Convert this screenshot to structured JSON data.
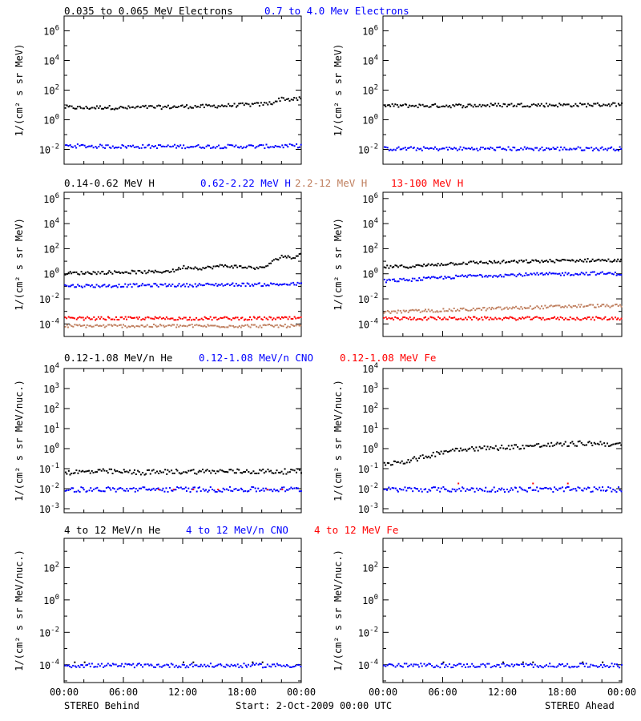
{
  "colors": {
    "black": "#000000",
    "blue": "#0000ff",
    "tan": "#c08060",
    "red": "#ff0000"
  },
  "chart_data": [
    {
      "type": "scatter",
      "panel": "row1-left",
      "ylabel": "1/(cm² s sr MeV)",
      "ylim_log10": [
        -3,
        7
      ],
      "log_y": true,
      "ytick_exponents": [
        -2,
        0,
        2,
        4,
        6
      ],
      "xlim_hours": [
        0,
        24
      ],
      "series": [
        {
          "name": "0.035 to 0.065 MeV Electrons",
          "color": "black",
          "x_hours": [
            0,
            2,
            4,
            6,
            8,
            10,
            12,
            14,
            16,
            18,
            20,
            21,
            22,
            23,
            24
          ],
          "log10_y": [
            0.9,
            0.85,
            0.9,
            0.85,
            0.9,
            0.9,
            0.95,
            0.95,
            1.0,
            1.05,
            1.1,
            1.2,
            1.5,
            1.4,
            1.5
          ]
        },
        {
          "name": "0.7 to 4.0 Mev Electrons",
          "color": "blue",
          "x_hours": [
            0,
            4,
            8,
            12,
            16,
            20,
            24
          ],
          "log10_y": [
            -1.7,
            -1.75,
            -1.75,
            -1.75,
            -1.75,
            -1.75,
            -1.7
          ]
        }
      ]
    },
    {
      "type": "scatter",
      "panel": "row1-right",
      "ylabel": "1/(cm² s sr MeV)",
      "ylim_log10": [
        -3,
        7
      ],
      "log_y": true,
      "ytick_exponents": [
        -2,
        0,
        2,
        4,
        6
      ],
      "xlim_hours": [
        0,
        24
      ],
      "series": [
        {
          "name": "0.035 to 0.065 MeV Electrons",
          "color": "black",
          "x_hours": [
            0,
            4,
            8,
            12,
            16,
            20,
            24
          ],
          "log10_y": [
            1.0,
            1.0,
            1.0,
            1.05,
            1.05,
            1.05,
            1.1
          ]
        },
        {
          "name": "0.7 to 4.0 Mev Electrons",
          "color": "blue",
          "x_hours": [
            0,
            4,
            8,
            12,
            16,
            20,
            24
          ],
          "log10_y": [
            -1.9,
            -1.9,
            -1.9,
            -1.9,
            -1.9,
            -1.9,
            -1.9
          ]
        }
      ]
    },
    {
      "type": "scatter",
      "panel": "row2-left",
      "ylabel": "1/(cm² s sr MeV)",
      "ylim_log10": [
        -5,
        6.5
      ],
      "log_y": true,
      "ytick_exponents": [
        -4,
        -2,
        0,
        2,
        4,
        6
      ],
      "xlim_hours": [
        0,
        24
      ],
      "series": [
        {
          "name": "0.14-0.62 MeV H",
          "color": "black",
          "x_hours": [
            0,
            3,
            6,
            9,
            11,
            12,
            14,
            16,
            18,
            20,
            21,
            22,
            23,
            24
          ],
          "log10_y": [
            0.1,
            0.15,
            0.2,
            0.2,
            0.3,
            0.6,
            0.5,
            0.7,
            0.6,
            0.5,
            1.0,
            1.5,
            1.3,
            1.8
          ]
        },
        {
          "name": "0.62-2.22 MeV H",
          "color": "blue",
          "x_hours": [
            0,
            4,
            8,
            12,
            16,
            20,
            24
          ],
          "log10_y": [
            -0.9,
            -0.9,
            -0.85,
            -0.85,
            -0.8,
            -0.8,
            -0.75
          ]
        },
        {
          "name": "2.2-12 MeV H",
          "color": "tan",
          "x_hours": [
            0,
            4,
            8,
            12,
            16,
            20,
            24
          ],
          "log10_y": [
            -4.1,
            -4.1,
            -4.1,
            -4.1,
            -4.1,
            -4.1,
            -4.1
          ]
        },
        {
          "name": "13-100 MeV H",
          "color": "red",
          "x_hours": [
            0,
            4,
            8,
            12,
            16,
            20,
            24
          ],
          "log10_y": [
            -3.5,
            -3.5,
            -3.5,
            -3.5,
            -3.5,
            -3.5,
            -3.5
          ]
        }
      ]
    },
    {
      "type": "scatter",
      "panel": "row2-right",
      "ylabel": "1/(cm² s sr MeV)",
      "ylim_log10": [
        -5,
        6.5
      ],
      "log_y": true,
      "ytick_exponents": [
        -4,
        -2,
        0,
        2,
        4,
        6
      ],
      "xlim_hours": [
        0,
        24
      ],
      "series": [
        {
          "name": "0.14-0.62 MeV H",
          "color": "black",
          "x_hours": [
            0,
            3,
            6,
            9,
            12,
            15,
            18,
            21,
            24
          ],
          "log10_y": [
            0.6,
            0.65,
            0.85,
            0.95,
            1.0,
            1.05,
            1.1,
            1.15,
            1.1
          ]
        },
        {
          "name": "0.62-2.22 MeV H",
          "color": "blue",
          "x_hours": [
            0,
            3,
            6,
            9,
            12,
            15,
            18,
            21,
            24
          ],
          "log10_y": [
            -0.5,
            -0.4,
            -0.25,
            -0.1,
            -0.05,
            0.0,
            0.05,
            0.1,
            0.05
          ]
        },
        {
          "name": "2.2-12 MeV H",
          "color": "tan",
          "x_hours": [
            0,
            4,
            8,
            12,
            16,
            20,
            24
          ],
          "log10_y": [
            -3.0,
            -2.9,
            -2.8,
            -2.7,
            -2.6,
            -2.5,
            -2.5
          ]
        },
        {
          "name": "13-100 MeV H",
          "color": "red",
          "x_hours": [
            0,
            4,
            8,
            12,
            16,
            20,
            24
          ],
          "log10_y": [
            -3.5,
            -3.5,
            -3.5,
            -3.5,
            -3.5,
            -3.5,
            -3.5
          ]
        }
      ]
    },
    {
      "type": "scatter",
      "panel": "row3-left",
      "ylabel": "1/(cm² s sr MeV/nuc.)",
      "ylim_log10": [
        -3.2,
        4
      ],
      "log_y": true,
      "ytick_exponents": [
        -3,
        -2,
        -1,
        0,
        1,
        2,
        3,
        4
      ],
      "xlim_hours": [
        0,
        24
      ],
      "series": [
        {
          "name": "0.12-1.08 MeV/n He",
          "color": "black",
          "x_hours": [
            0,
            4,
            8,
            12,
            16,
            20,
            24
          ],
          "log10_y": [
            -1.15,
            -1.1,
            -1.15,
            -1.1,
            -1.1,
            -1.1,
            -1.1
          ]
        },
        {
          "name": "0.12-1.08 MeV/n CNO",
          "color": "blue",
          "x_hours": [
            0,
            4,
            8,
            12,
            16,
            20,
            24
          ],
          "log10_y": [
            -2.0,
            -2.0,
            -2.0,
            -2.0,
            -2.0,
            -2.0,
            -2.0
          ]
        },
        {
          "name": "0.12-1.08 MeV Fe",
          "color": "red",
          "x_hours": [
            9.5,
            11,
            13,
            15.5,
            20.5,
            22
          ],
          "log10_y": [
            -2.0,
            -2.0,
            -2.0,
            -2.0,
            -2.0,
            -2.0
          ]
        }
      ]
    },
    {
      "type": "scatter",
      "panel": "row3-right",
      "ylabel": "1/(cm² s sr MeV/nuc.)",
      "ylim_log10": [
        -3.2,
        4
      ],
      "log_y": true,
      "ytick_exponents": [
        -3,
        -2,
        -1,
        0,
        1,
        2,
        3,
        4
      ],
      "xlim_hours": [
        0,
        24
      ],
      "series": [
        {
          "name": "0.12-1.08 MeV/n He",
          "color": "black",
          "x_hours": [
            0,
            2,
            4,
            6,
            8,
            10,
            12,
            14,
            16,
            18,
            20,
            22,
            24
          ],
          "log10_y": [
            -0.7,
            -0.6,
            -0.4,
            -0.1,
            0.05,
            0.05,
            0.1,
            0.15,
            0.2,
            0.25,
            0.3,
            0.3,
            0.2
          ]
        },
        {
          "name": "0.12-1.08 MeV/n CNO",
          "color": "blue",
          "x_hours": [
            0,
            4,
            8,
            12,
            16,
            20,
            24
          ],
          "log10_y": [
            -2.0,
            -2.0,
            -2.0,
            -2.0,
            -2.0,
            -2.0,
            -2.0
          ]
        },
        {
          "name": "0.12-1.08 MeV Fe",
          "color": "red",
          "x_hours": [
            7.5,
            15,
            18.5
          ],
          "log10_y": [
            -1.7,
            -1.7,
            -1.7
          ]
        }
      ]
    },
    {
      "type": "scatter",
      "panel": "row4-left",
      "ylabel": "1/(cm² s sr MeV/nuc.)",
      "ylim_log10": [
        -5.1,
        3.8
      ],
      "log_y": true,
      "ytick_exponents": [
        -4,
        -2,
        0,
        2
      ],
      "xlim_hours": [
        0,
        24
      ],
      "series": [
        {
          "name": "4 to 12 MeV/n He",
          "color": "black",
          "x_hours": [
            0,
            1,
            2,
            12,
            13,
            19,
            20
          ],
          "log10_y": [
            -4.0,
            -3.8,
            -3.8,
            -3.8,
            -3.8,
            -3.8,
            -3.8
          ]
        },
        {
          "name": "4 to 12 MeV/n CNO",
          "color": "blue",
          "x_hours": [
            0,
            4,
            8,
            12,
            16,
            20,
            24
          ],
          "log10_y": [
            -4.0,
            -4.0,
            -4.0,
            -4.0,
            -4.0,
            -4.0,
            -4.0
          ]
        },
        {
          "name": "4 to 12 MeV Fe",
          "color": "red",
          "x_hours": [],
          "log10_y": []
        }
      ]
    },
    {
      "type": "scatter",
      "panel": "row4-right",
      "ylabel": "1/(cm² s sr MeV/nuc.)",
      "ylim_log10": [
        -5.1,
        3.8
      ],
      "log_y": true,
      "ytick_exponents": [
        -4,
        -2,
        0,
        2
      ],
      "xlim_hours": [
        0,
        24
      ],
      "series": [
        {
          "name": "4 to 12 MeV/n He",
          "color": "black",
          "x_hours": [
            6,
            12,
            14,
            15,
            20,
            22
          ],
          "log10_y": [
            -3.8,
            -3.8,
            -3.8,
            -3.8,
            -3.8,
            -3.8
          ]
        },
        {
          "name": "4 to 12 MeV/n CNO",
          "color": "blue",
          "x_hours": [
            0,
            4,
            8,
            12,
            16,
            20,
            24
          ],
          "log10_y": [
            -4.0,
            -4.0,
            -4.0,
            -4.0,
            -4.0,
            -4.0,
            -4.0
          ]
        },
        {
          "name": "4 to 12 MeV Fe",
          "color": "red",
          "x_hours": [],
          "log10_y": []
        }
      ]
    }
  ],
  "legends": {
    "row1": [
      "0.035 to 0.065 MeV Electrons",
      "0.7 to 4.0 Mev Electrons"
    ],
    "row2": [
      "0.14-0.62 MeV H",
      "0.62-2.22 MeV H",
      "2.2-12 MeV H",
      "13-100 MeV H"
    ],
    "row3": [
      "0.12-1.08 MeV/n He",
      "0.12-1.08 MeV/n CNO",
      "0.12-1.08 MeV Fe"
    ],
    "row4": [
      "4 to 12 MeV/n He",
      "4 to 12 MeV/n CNO",
      "4 to 12 MeV Fe"
    ]
  },
  "x_ticks": [
    "00:00",
    "06:00",
    "12:00",
    "18:00",
    "00:00"
  ],
  "footer": {
    "left": "STEREO Behind",
    "center": "Start:  2-Oct-2009 00:00 UTC",
    "right": "STEREO Ahead"
  }
}
